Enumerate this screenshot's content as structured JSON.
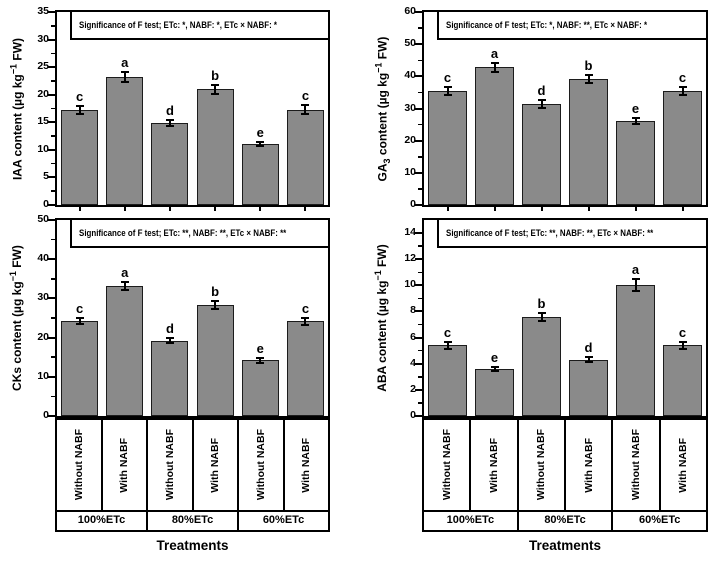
{
  "figure": {
    "xlabel": "Treatments",
    "groups": [
      "100%ETc",
      "80%ETc",
      "60%ETc"
    ],
    "subgroups": [
      "Without NABF",
      "With NABF"
    ],
    "categories": [
      "100%ETc Without NABF",
      "100%ETc With NABF",
      "80%ETc Without NABF",
      "80%ETc With NABF",
      "60%ETc Without NABF",
      "60%ETc With NABF"
    ],
    "bar_fill": "#8a8a8a",
    "bar_stroke": "#1c1c1c",
    "axis_color": "#000000",
    "background": "#ffffff"
  },
  "chart_data": [
    {
      "id": "iaa",
      "type": "bar",
      "position": "top-left",
      "ylabel_plain": "IAA content (µg kg−1 FW)",
      "ylabel_parts": [
        [
          "text",
          "IAA content (µg kg"
        ],
        [
          "sup",
          "−1"
        ],
        [
          "text",
          " FW)"
        ]
      ],
      "ylim": [
        0,
        35
      ],
      "yticks": [
        0,
        5,
        10,
        15,
        20,
        25,
        30,
        35
      ],
      "minor_step": 2.5,
      "significance": "Significance of F test; ETc: *, NABF: *, ETc × NABF: *",
      "values": [
        17.2,
        23.2,
        14.9,
        21.0,
        11.1,
        17.3
      ],
      "errors": [
        0.7,
        0.9,
        0.5,
        0.8,
        0.4,
        0.8
      ],
      "letters": [
        "c",
        "a",
        "d",
        "b",
        "e",
        "c"
      ]
    },
    {
      "id": "ga3",
      "type": "bar",
      "position": "top-right",
      "ylabel_plain": "GA3 content (µg kg−1 FW)",
      "ylabel_parts": [
        [
          "text",
          "GA"
        ],
        [
          "sub",
          "3"
        ],
        [
          "text",
          " content (µg kg"
        ],
        [
          "sup",
          "−1"
        ],
        [
          "text",
          " FW)"
        ]
      ],
      "ylim": [
        0,
        60
      ],
      "yticks": [
        0,
        10,
        20,
        30,
        40,
        50,
        60
      ],
      "minor_step": 5,
      "significance": "Significance of F test; ETc: *, NABF: **, ETc × NABF: *",
      "values": [
        35.5,
        42.8,
        31.3,
        39.2,
        26.1,
        35.4
      ],
      "errors": [
        1.2,
        1.3,
        1.2,
        1.2,
        0.9,
        1.2
      ],
      "letters": [
        "c",
        "a",
        "d",
        "b",
        "e",
        "c"
      ]
    },
    {
      "id": "cks",
      "type": "bar",
      "position": "bottom-left",
      "ylabel_plain": "CKs content (µg kg−1 FW)",
      "ylabel_parts": [
        [
          "text",
          "CKs content (µg kg"
        ],
        [
          "sup",
          "−1"
        ],
        [
          "text",
          " FW)"
        ]
      ],
      "ylim": [
        0,
        50
      ],
      "yticks": [
        0,
        10,
        20,
        30,
        40,
        50
      ],
      "minor_step": 5,
      "significance": "Significance of F test; ETc: **, NABF: **, ETc × NABF: **",
      "values": [
        24.3,
        33.2,
        19.2,
        28.3,
        14.2,
        24.2
      ],
      "errors": [
        0.8,
        1.0,
        0.7,
        1.0,
        0.6,
        0.9
      ],
      "letters": [
        "c",
        "a",
        "d",
        "b",
        "e",
        "c"
      ]
    },
    {
      "id": "aba",
      "type": "bar",
      "position": "bottom-right",
      "ylabel_plain": "ABA content (µg kg−1 FW)",
      "ylabel_parts": [
        [
          "text",
          "ABA content (µg kg"
        ],
        [
          "sup",
          "−1"
        ],
        [
          "text",
          " FW)"
        ]
      ],
      "ylim": [
        0,
        15
      ],
      "yticks": [
        0,
        2,
        4,
        6,
        8,
        10,
        12,
        14
      ],
      "minor_step": 1,
      "significance": "Significance of F test; ETc: **, NABF: **, ETc × NABF: **",
      "values": [
        5.4,
        3.6,
        7.6,
        4.3,
        10.0,
        5.4
      ],
      "errors": [
        0.3,
        0.15,
        0.3,
        0.2,
        0.45,
        0.3
      ],
      "letters": [
        "c",
        "e",
        "b",
        "d",
        "a",
        "c"
      ]
    }
  ]
}
